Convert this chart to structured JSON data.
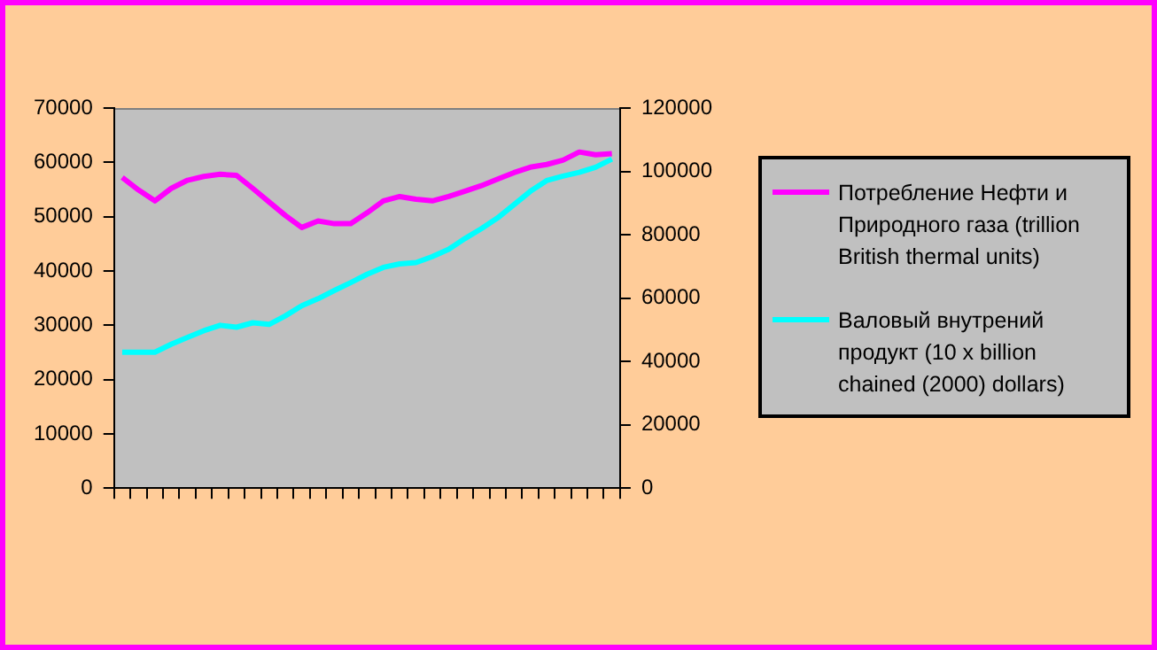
{
  "chart_data": {
    "type": "line",
    "categories": [
      null,
      null,
      null,
      null,
      null,
      null,
      null,
      null,
      null,
      null,
      null,
      null,
      null,
      null,
      null,
      null,
      null,
      null,
      null,
      null,
      null,
      null,
      null,
      null,
      null,
      null,
      null,
      null,
      null,
      null,
      null
    ],
    "series": [
      {
        "name": "Потребление Нефти и Природного газа (trillion British thermal units)",
        "color": "#ff00ff",
        "values": [
          57200,
          54900,
          52900,
          55200,
          56700,
          57400,
          57800,
          57600,
          55200,
          52700,
          50200,
          48000,
          49200,
          48700,
          48700,
          50700,
          52900,
          53700,
          53200,
          52900,
          53700,
          54700,
          55700,
          56900,
          58100,
          59100,
          59600,
          60400,
          61900,
          61400,
          61600
        ]
      },
      {
        "name": "Валовый внутрений продукт  (10 x billion chained (2000) dollars)",
        "color": "#00ffff",
        "axis": "y2",
        "values": [
          42900,
          42900,
          42900,
          45400,
          47600,
          49700,
          51400,
          50800,
          52200,
          51700,
          54400,
          57600,
          59800,
          62400,
          64900,
          67500,
          69700,
          70800,
          71200,
          73100,
          75400,
          78800,
          81900,
          85300,
          89500,
          93700,
          97100,
          98500,
          99700,
          101300,
          103900
        ]
      }
    ],
    "ylim": [
      0,
      70000
    ],
    "yticks": [
      0,
      10000,
      20000,
      30000,
      40000,
      50000,
      60000,
      70000
    ],
    "y2lim": [
      0,
      120000
    ],
    "y2ticks": [
      0,
      20000,
      40000,
      60000,
      80000,
      100000,
      120000
    ],
    "grid": false,
    "legend": "right",
    "marker": "none",
    "line_style": "solid"
  }
}
